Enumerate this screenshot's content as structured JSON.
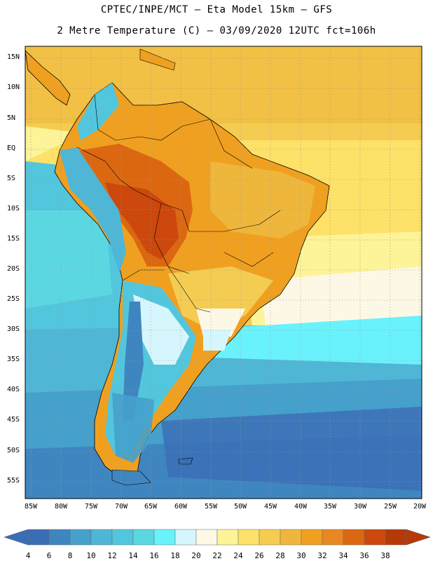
{
  "header": {
    "line1": "CPTEC/INPE/MCT –  Eta Model 15km – GFS",
    "line2": "2 Metre Temperature (C) – 03/09/2020 12UTC fct=106h"
  },
  "map": {
    "lat_labels": [
      "15N",
      "10N",
      "5N",
      "EQ",
      "5S",
      "10S",
      "15S",
      "20S",
      "25S",
      "30S",
      "35S",
      "40S",
      "45S",
      "50S",
      "55S"
    ],
    "lon_labels": [
      "85W",
      "80W",
      "75W",
      "70W",
      "65W",
      "60W",
      "55W",
      "50W",
      "45W",
      "40W",
      "35W",
      "30W",
      "25W",
      "20W"
    ]
  },
  "colorbar": {
    "labels": [
      "4",
      "6",
      "8",
      "10",
      "12",
      "14",
      "16",
      "18",
      "20",
      "22",
      "24",
      "26",
      "28",
      "30",
      "32",
      "34",
      "36",
      "38"
    ],
    "colors": [
      "#3b6db5",
      "#3f85c0",
      "#45a0cc",
      "#4fb6d6",
      "#52c6dc",
      "#5bd7e2",
      "#69f2fb",
      "#d6f6fd",
      "#fdf8e6",
      "#fdf398",
      "#fde168",
      "#f5cc52",
      "#eeb73c",
      "#f0a020",
      "#e98722",
      "#dc6711",
      "#cc480c",
      "#b53a08"
    ],
    "low_arrow": "#3b6db5",
    "high_arrow": "#b53a08"
  }
}
